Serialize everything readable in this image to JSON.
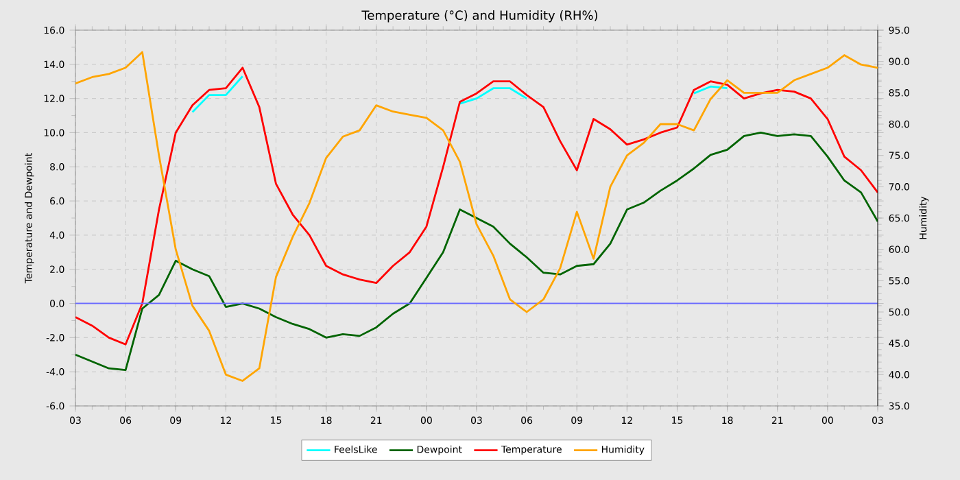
{
  "chart_data": {
    "type": "line",
    "title": "Temperature (°C) and Humidity (RH%)",
    "ylabel": "Temperature and Dewpoint",
    "y2label": "Humidity",
    "categories": [
      "03",
      null,
      null,
      "06",
      null,
      null,
      "09",
      null,
      null,
      "12",
      null,
      null,
      "15",
      null,
      null,
      "18",
      null,
      null,
      "21",
      null,
      null,
      "00",
      null,
      null,
      "03",
      null,
      null,
      "06",
      null,
      null,
      "09",
      null,
      null,
      "12",
      null,
      null,
      "15",
      null,
      null,
      "18",
      null,
      null,
      "21",
      null,
      null,
      "00",
      null,
      null,
      "03"
    ],
    "series": [
      {
        "name": "FeelsLike",
        "color": "#00ffff",
        "values": [
          null,
          null,
          null,
          null,
          null,
          null,
          null,
          11.2,
          12.2,
          12.2,
          13.3,
          null,
          null,
          null,
          null,
          null,
          null,
          null,
          null,
          null,
          null,
          null,
          null,
          11.7,
          12.0,
          12.6,
          12.6,
          12.0,
          null,
          null,
          null,
          null,
          null,
          null,
          null,
          null,
          null,
          12.3,
          12.7,
          12.6,
          null,
          null,
          null,
          null,
          null,
          null,
          null,
          null,
          null
        ]
      },
      {
        "name": "Dewpoint",
        "color": "#006400",
        "values": [
          -3.0,
          -3.4,
          -3.8,
          -3.9,
          -0.3,
          0.5,
          2.5,
          2.0,
          1.6,
          -0.2,
          0.0,
          -0.3,
          -0.8,
          -1.2,
          -1.5,
          -2.0,
          -1.8,
          -1.9,
          -1.4,
          -0.6,
          0.0,
          1.5,
          3.0,
          5.5,
          5.0,
          4.5,
          3.5,
          2.7,
          1.8,
          1.7,
          2.2,
          2.3,
          3.5,
          5.5,
          5.9,
          6.6,
          7.2,
          7.9,
          8.7,
          9.0,
          9.8,
          10.0,
          9.8,
          9.9,
          9.8,
          8.6,
          7.2,
          6.5,
          4.8
        ]
      },
      {
        "name": "Temperature",
        "color": "#ff0000",
        "values": [
          -0.8,
          -1.3,
          -2.0,
          -2.4,
          0.0,
          5.5,
          10.0,
          11.6,
          12.5,
          12.6,
          13.8,
          11.5,
          7.0,
          5.2,
          4.0,
          2.2,
          1.7,
          1.4,
          1.2,
          2.2,
          3.0,
          4.5,
          8.0,
          11.8,
          12.3,
          13.0,
          13.0,
          12.2,
          11.5,
          9.5,
          7.8,
          10.8,
          10.2,
          9.3,
          9.6,
          10.0,
          10.3,
          12.5,
          13.0,
          12.8,
          12.0,
          12.3,
          12.5,
          12.4,
          12.0,
          10.8,
          8.6,
          7.8,
          6.5
        ]
      },
      {
        "name": "Humidity",
        "color": "#ffa500",
        "axis": "y2",
        "values": [
          86.5,
          87.5,
          88,
          89,
          91.5,
          75,
          60,
          51,
          47,
          40,
          39,
          41,
          55.6,
          62,
          67.4,
          74.6,
          78,
          79,
          83,
          82,
          81.5,
          81,
          79,
          74,
          64,
          59,
          52,
          50,
          52,
          57,
          66,
          58.5,
          70,
          75,
          77,
          80,
          80,
          79,
          84,
          87,
          85,
          85,
          85,
          87,
          88,
          89,
          91,
          89.5,
          89
        ]
      }
    ],
    "ylim": [
      -6,
      16
    ],
    "yticks": [
      {
        "value": -6,
        "label": "-6.0"
      },
      {
        "value": -4,
        "label": "-4.0"
      },
      {
        "value": -2,
        "label": "-2.0"
      },
      {
        "value": 0,
        "label": "0.0"
      },
      {
        "value": 2,
        "label": "2.0"
      },
      {
        "value": 4,
        "label": "4.0"
      },
      {
        "value": 6,
        "label": "6.0"
      },
      {
        "value": 8,
        "label": "8.0"
      },
      {
        "value": 10,
        "label": "10.0"
      },
      {
        "value": 12,
        "label": "12.0"
      },
      {
        "value": 14,
        "label": "14.0"
      },
      {
        "value": 16,
        "label": "16.0"
      }
    ],
    "y2lim": [
      35,
      95
    ],
    "y2ticks": [
      {
        "value": 35,
        "label": "35.0"
      },
      {
        "value": 40,
        "label": "40.0"
      },
      {
        "value": 45,
        "label": "45.0"
      },
      {
        "value": 50,
        "label": "50.0"
      },
      {
        "value": 55,
        "label": "55.0"
      },
      {
        "value": 60,
        "label": "60.0"
      },
      {
        "value": 65,
        "label": "65.0"
      },
      {
        "value": 70,
        "label": "70.0"
      },
      {
        "value": 75,
        "label": "75.0"
      },
      {
        "value": 80,
        "label": "80.0"
      },
      {
        "value": 85,
        "label": "85.0"
      },
      {
        "value": 90,
        "label": "90.0"
      },
      {
        "value": 95,
        "label": "95.0"
      }
    ],
    "ref_lines": [
      {
        "axis": "y",
        "value": 0,
        "color": "#6a6aff"
      }
    ],
    "grid": true,
    "legend": "bottom",
    "marker": "none",
    "line_style": "solid"
  }
}
